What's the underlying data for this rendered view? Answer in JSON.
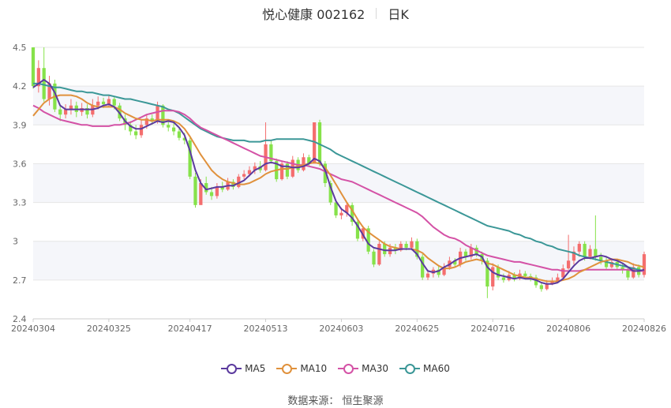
{
  "header": {
    "title": "悦心健康 002162",
    "period": "日K"
  },
  "source": "数据来源： 恒生聚源",
  "colors": {
    "up": "#F46E6E",
    "down": "#86E24A",
    "MA5": "#5B3A9E",
    "MA10": "#E0913C",
    "MA30": "#D452A6",
    "MA60": "#3B9797"
  },
  "legend": [
    {
      "key": "MA5",
      "label": "MA5"
    },
    {
      "key": "MA10",
      "label": "MA10"
    },
    {
      "key": "MA30",
      "label": "MA30"
    },
    {
      "key": "MA60",
      "label": "MA60"
    }
  ],
  "chart_data": {
    "type": "candlestick",
    "ylim": [
      2.4,
      4.5
    ],
    "yticks": [
      "2.4",
      "2.7",
      "3",
      "3.3",
      "3.6",
      "3.9",
      "4.2",
      "4.5"
    ],
    "xtick_labels": [
      "20240304",
      "20240325",
      "20240417",
      "20240513",
      "20240603",
      "20240625",
      "20240716",
      "20240806",
      "20240826"
    ],
    "xtick_index": [
      0,
      14,
      29,
      43,
      57,
      71,
      85,
      99,
      113
    ],
    "grid": true,
    "candles": [
      [
        4.5,
        4.2,
        4.5,
        4.18
      ],
      [
        4.2,
        4.34,
        4.4,
        4.15
      ],
      [
        4.34,
        4.1,
        4.5,
        4.08
      ],
      [
        4.1,
        4.22,
        4.28,
        4.05
      ],
      [
        4.22,
        4.02,
        4.25,
        4.0
      ],
      [
        4.02,
        3.98,
        4.05,
        3.93
      ],
      [
        3.98,
        4.02,
        4.06,
        3.95
      ],
      [
        4.02,
        4.05,
        4.1,
        3.98
      ],
      [
        4.05,
        4.0,
        4.08,
        3.96
      ],
      [
        4.0,
        4.03,
        4.07,
        3.97
      ],
      [
        4.03,
        3.98,
        4.06,
        3.95
      ],
      [
        3.98,
        4.05,
        4.1,
        3.96
      ],
      [
        4.05,
        4.08,
        4.12,
        4.02
      ],
      [
        4.08,
        4.06,
        4.11,
        4.03
      ],
      [
        4.06,
        4.1,
        4.13,
        4.04
      ],
      [
        4.1,
        4.05,
        4.12,
        4.02
      ],
      [
        4.05,
        3.95,
        4.07,
        3.93
      ],
      [
        3.95,
        3.9,
        3.98,
        3.86
      ],
      [
        3.9,
        3.85,
        3.93,
        3.82
      ],
      [
        3.85,
        3.82,
        3.9,
        3.79
      ],
      [
        3.82,
        3.9,
        3.94,
        3.8
      ],
      [
        3.9,
        3.95,
        3.98,
        3.87
      ],
      [
        3.95,
        3.93,
        3.98,
        3.9
      ],
      [
        3.93,
        4.05,
        4.08,
        3.91
      ],
      [
        4.05,
        3.9,
        4.06,
        3.88
      ],
      [
        3.9,
        3.88,
        3.94,
        3.85
      ],
      [
        3.88,
        3.85,
        3.92,
        3.82
      ],
      [
        3.85,
        3.8,
        3.88,
        3.78
      ],
      [
        3.8,
        3.78,
        3.84,
        3.75
      ],
      [
        3.78,
        3.5,
        3.8,
        3.48
      ],
      [
        3.5,
        3.28,
        3.53,
        3.26
      ],
      [
        3.28,
        3.45,
        3.48,
        3.3
      ],
      [
        3.45,
        3.38,
        3.5,
        3.36
      ],
      [
        3.38,
        3.35,
        3.42,
        3.32
      ],
      [
        3.35,
        3.42,
        3.45,
        3.33
      ],
      [
        3.42,
        3.4,
        3.46,
        3.38
      ],
      [
        3.4,
        3.46,
        3.49,
        3.39
      ],
      [
        3.46,
        3.42,
        3.48,
        3.4
      ],
      [
        3.42,
        3.5,
        3.52,
        3.41
      ],
      [
        3.5,
        3.52,
        3.55,
        3.48
      ],
      [
        3.52,
        3.55,
        3.58,
        3.5
      ],
      [
        3.55,
        3.58,
        3.61,
        3.52
      ],
      [
        3.58,
        3.55,
        3.62,
        3.53
      ],
      [
        3.55,
        3.75,
        3.92,
        3.54
      ],
      [
        3.75,
        3.62,
        3.78,
        3.6
      ],
      [
        3.62,
        3.48,
        3.64,
        3.46
      ],
      [
        3.48,
        3.6,
        3.62,
        3.47
      ],
      [
        3.6,
        3.5,
        3.62,
        3.48
      ],
      [
        3.5,
        3.63,
        3.66,
        3.49
      ],
      [
        3.63,
        3.55,
        3.65,
        3.53
      ],
      [
        3.55,
        3.65,
        3.68,
        3.54
      ],
      [
        3.65,
        3.6,
        3.67,
        3.58
      ],
      [
        3.6,
        3.92,
        3.92,
        3.72
      ],
      [
        3.92,
        3.6,
        3.94,
        3.58
      ],
      [
        3.6,
        3.45,
        3.62,
        3.42
      ],
      [
        3.45,
        3.3,
        3.47,
        3.28
      ],
      [
        3.3,
        3.2,
        3.32,
        3.18
      ],
      [
        3.2,
        3.22,
        3.26,
        3.17
      ],
      [
        3.22,
        3.28,
        3.3,
        3.19
      ],
      [
        3.28,
        3.15,
        3.3,
        3.12
      ],
      [
        3.15,
        3.02,
        3.18,
        3.0
      ],
      [
        3.02,
        3.1,
        3.12,
        3.0
      ],
      [
        3.1,
        2.92,
        3.12,
        2.9
      ],
      [
        2.92,
        2.82,
        2.94,
        2.8
      ],
      [
        2.82,
        2.98,
        3.0,
        2.81
      ],
      [
        2.98,
        2.9,
        3.0,
        2.88
      ],
      [
        2.9,
        2.95,
        2.98,
        2.88
      ],
      [
        2.95,
        2.93,
        2.98,
        2.9
      ],
      [
        2.93,
        2.98,
        3.0,
        2.92
      ],
      [
        2.98,
        2.95,
        3.0,
        2.93
      ],
      [
        2.95,
        3.0,
        3.03,
        2.93
      ],
      [
        3.0,
        2.88,
        3.02,
        2.86
      ],
      [
        2.88,
        2.72,
        2.9,
        2.7
      ],
      [
        2.72,
        2.75,
        2.78,
        2.7
      ],
      [
        2.75,
        2.78,
        2.8,
        2.72
      ],
      [
        2.78,
        2.74,
        2.81,
        2.72
      ],
      [
        2.74,
        2.8,
        2.83,
        2.73
      ],
      [
        2.8,
        2.85,
        2.88,
        2.78
      ],
      [
        2.85,
        2.82,
        2.87,
        2.8
      ],
      [
        2.82,
        2.92,
        2.95,
        2.8
      ],
      [
        2.92,
        2.88,
        2.94,
        2.85
      ],
      [
        2.88,
        2.95,
        2.98,
        2.86
      ],
      [
        2.95,
        2.9,
        2.97,
        2.88
      ],
      [
        2.9,
        2.85,
        2.92,
        2.82
      ],
      [
        2.85,
        2.65,
        2.87,
        2.56
      ],
      [
        2.65,
        2.8,
        2.83,
        2.62
      ],
      [
        2.8,
        2.72,
        2.82,
        2.7
      ],
      [
        2.72,
        2.7,
        2.75,
        2.68
      ],
      [
        2.7,
        2.74,
        2.77,
        2.69
      ],
      [
        2.74,
        2.71,
        2.76,
        2.69
      ],
      [
        2.71,
        2.75,
        2.78,
        2.7
      ],
      [
        2.75,
        2.73,
        2.77,
        2.71
      ],
      [
        2.73,
        2.72,
        2.75,
        2.69
      ],
      [
        2.72,
        2.66,
        2.74,
        2.64
      ],
      [
        2.66,
        2.63,
        2.68,
        2.61
      ],
      [
        2.63,
        2.67,
        2.7,
        2.62
      ],
      [
        2.67,
        2.69,
        2.72,
        2.66
      ],
      [
        2.69,
        2.72,
        2.75,
        2.68
      ],
      [
        2.72,
        2.79,
        2.82,
        2.71
      ],
      [
        2.79,
        2.85,
        3.05,
        2.78
      ],
      [
        2.85,
        2.92,
        2.96,
        2.82
      ],
      [
        2.92,
        2.98,
        3.0,
        2.88
      ],
      [
        2.98,
        2.88,
        3.0,
        2.85
      ],
      [
        2.88,
        2.94,
        2.97,
        2.86
      ],
      [
        2.94,
        2.88,
        3.2,
        2.85
      ],
      [
        2.88,
        2.85,
        2.91,
        2.82
      ],
      [
        2.85,
        2.8,
        2.88,
        2.78
      ],
      [
        2.8,
        2.84,
        2.87,
        2.79
      ],
      [
        2.84,
        2.8,
        2.86,
        2.78
      ],
      [
        2.8,
        2.78,
        2.83,
        2.75
      ],
      [
        2.78,
        2.72,
        2.8,
        2.7
      ],
      [
        2.72,
        2.8,
        2.83,
        2.71
      ],
      [
        2.8,
        2.74,
        2.82,
        2.72
      ],
      [
        2.74,
        2.9,
        2.92,
        2.72
      ]
    ],
    "MA5": [
      4.19,
      4.22,
      4.25,
      4.22,
      4.15,
      4.05,
      4.02,
      4.02,
      4.02,
      4.02,
      4.02,
      4.02,
      4.03,
      4.05,
      4.06,
      4.04,
      3.99,
      3.93,
      3.89,
      3.87,
      3.87,
      3.89,
      3.91,
      3.93,
      3.92,
      3.93,
      3.92,
      3.88,
      3.82,
      3.7,
      3.55,
      3.45,
      3.4,
      3.41,
      3.42,
      3.42,
      3.43,
      3.43,
      3.45,
      3.47,
      3.51,
      3.55,
      3.57,
      3.6,
      3.61,
      3.6,
      3.58,
      3.58,
      3.57,
      3.57,
      3.58,
      3.6,
      3.64,
      3.62,
      3.55,
      3.42,
      3.31,
      3.25,
      3.22,
      3.18,
      3.12,
      3.05,
      2.98,
      2.95,
      2.94,
      2.93,
      2.93,
      2.93,
      2.94,
      2.94,
      2.94,
      2.9,
      2.83,
      2.77,
      2.76,
      2.77,
      2.8,
      2.82,
      2.85,
      2.87,
      2.88,
      2.89,
      2.9,
      2.88,
      2.8,
      2.76,
      2.74,
      2.73,
      2.72,
      2.71,
      2.72,
      2.71,
      2.71,
      2.7,
      2.68,
      2.67,
      2.67,
      2.68,
      2.71,
      2.76,
      2.81,
      2.85,
      2.87,
      2.87,
      2.88,
      2.89,
      2.88,
      2.86,
      2.85,
      2.83,
      2.8,
      2.77,
      2.77,
      2.78
    ],
    "MA10": [
      3.97,
      4.02,
      4.07,
      4.1,
      4.12,
      4.13,
      4.13,
      4.13,
      4.12,
      4.1,
      4.07,
      4.05,
      4.04,
      4.04,
      4.04,
      4.04,
      4.02,
      3.99,
      3.97,
      3.95,
      3.94,
      3.94,
      3.93,
      3.94,
      3.94,
      3.94,
      3.93,
      3.91,
      3.87,
      3.81,
      3.74,
      3.67,
      3.61,
      3.55,
      3.51,
      3.48,
      3.46,
      3.45,
      3.44,
      3.44,
      3.45,
      3.47,
      3.49,
      3.52,
      3.54,
      3.55,
      3.56,
      3.56,
      3.57,
      3.58,
      3.59,
      3.6,
      3.61,
      3.6,
      3.57,
      3.51,
      3.44,
      3.37,
      3.3,
      3.24,
      3.17,
      3.11,
      3.07,
      3.04,
      3.01,
      2.98,
      2.96,
      2.95,
      2.94,
      2.94,
      2.94,
      2.93,
      2.91,
      2.87,
      2.84,
      2.81,
      2.79,
      2.79,
      2.8,
      2.82,
      2.84,
      2.85,
      2.86,
      2.85,
      2.83,
      2.82,
      2.8,
      2.78,
      2.76,
      2.74,
      2.73,
      2.72,
      2.72,
      2.71,
      2.7,
      2.69,
      2.69,
      2.69,
      2.7,
      2.71,
      2.73,
      2.76,
      2.78,
      2.8,
      2.82,
      2.84,
      2.85,
      2.86,
      2.86,
      2.85,
      2.84,
      2.82,
      2.81,
      2.8
    ],
    "MA30": [
      4.05,
      4.03,
      4.0,
      3.98,
      3.96,
      3.94,
      3.93,
      3.92,
      3.91,
      3.9,
      3.9,
      3.89,
      3.89,
      3.89,
      3.89,
      3.9,
      3.9,
      3.91,
      3.92,
      3.94,
      3.96,
      3.98,
      3.99,
      4.0,
      4.01,
      4.01,
      4.01,
      4.0,
      3.98,
      3.95,
      3.91,
      3.88,
      3.86,
      3.84,
      3.82,
      3.8,
      3.78,
      3.76,
      3.74,
      3.72,
      3.7,
      3.68,
      3.66,
      3.65,
      3.64,
      3.63,
      3.62,
      3.61,
      3.6,
      3.59,
      3.59,
      3.58,
      3.57,
      3.56,
      3.54,
      3.52,
      3.5,
      3.48,
      3.47,
      3.46,
      3.44,
      3.42,
      3.4,
      3.38,
      3.36,
      3.34,
      3.32,
      3.3,
      3.28,
      3.26,
      3.24,
      3.22,
      3.19,
      3.15,
      3.11,
      3.08,
      3.05,
      3.03,
      3.02,
      3.0,
      2.97,
      2.95,
      2.93,
      2.91,
      2.89,
      2.88,
      2.87,
      2.86,
      2.85,
      2.84,
      2.84,
      2.83,
      2.82,
      2.81,
      2.8,
      2.79,
      2.78,
      2.78,
      2.77,
      2.77,
      2.77,
      2.77,
      2.78,
      2.78,
      2.78,
      2.78,
      2.78,
      2.78,
      2.78,
      2.78,
      2.78,
      2.77,
      2.77,
      2.77
    ],
    "MA60": [
      4.22,
      4.22,
      4.21,
      4.2,
      4.19,
      4.19,
      4.18,
      4.17,
      4.16,
      4.16,
      4.15,
      4.15,
      4.14,
      4.13,
      4.13,
      4.12,
      4.11,
      4.1,
      4.1,
      4.09,
      4.08,
      4.07,
      4.06,
      4.05,
      4.04,
      4.02,
      4.01,
      3.99,
      3.96,
      3.93,
      3.9,
      3.87,
      3.85,
      3.83,
      3.81,
      3.8,
      3.79,
      3.78,
      3.78,
      3.78,
      3.77,
      3.77,
      3.77,
      3.78,
      3.78,
      3.79,
      3.79,
      3.79,
      3.79,
      3.79,
      3.79,
      3.78,
      3.77,
      3.75,
      3.73,
      3.71,
      3.68,
      3.66,
      3.64,
      3.62,
      3.6,
      3.58,
      3.56,
      3.54,
      3.52,
      3.5,
      3.48,
      3.46,
      3.44,
      3.42,
      3.4,
      3.38,
      3.36,
      3.34,
      3.32,
      3.3,
      3.28,
      3.26,
      3.24,
      3.22,
      3.2,
      3.18,
      3.16,
      3.14,
      3.12,
      3.11,
      3.1,
      3.09,
      3.08,
      3.06,
      3.05,
      3.03,
      3.02,
      3.0,
      2.99,
      2.97,
      2.96,
      2.94,
      2.93,
      2.92,
      2.91,
      2.89,
      2.88,
      2.87,
      2.86,
      2.85,
      2.84,
      2.83,
      2.82,
      2.81,
      2.8,
      2.79,
      2.78,
      2.77
    ]
  }
}
